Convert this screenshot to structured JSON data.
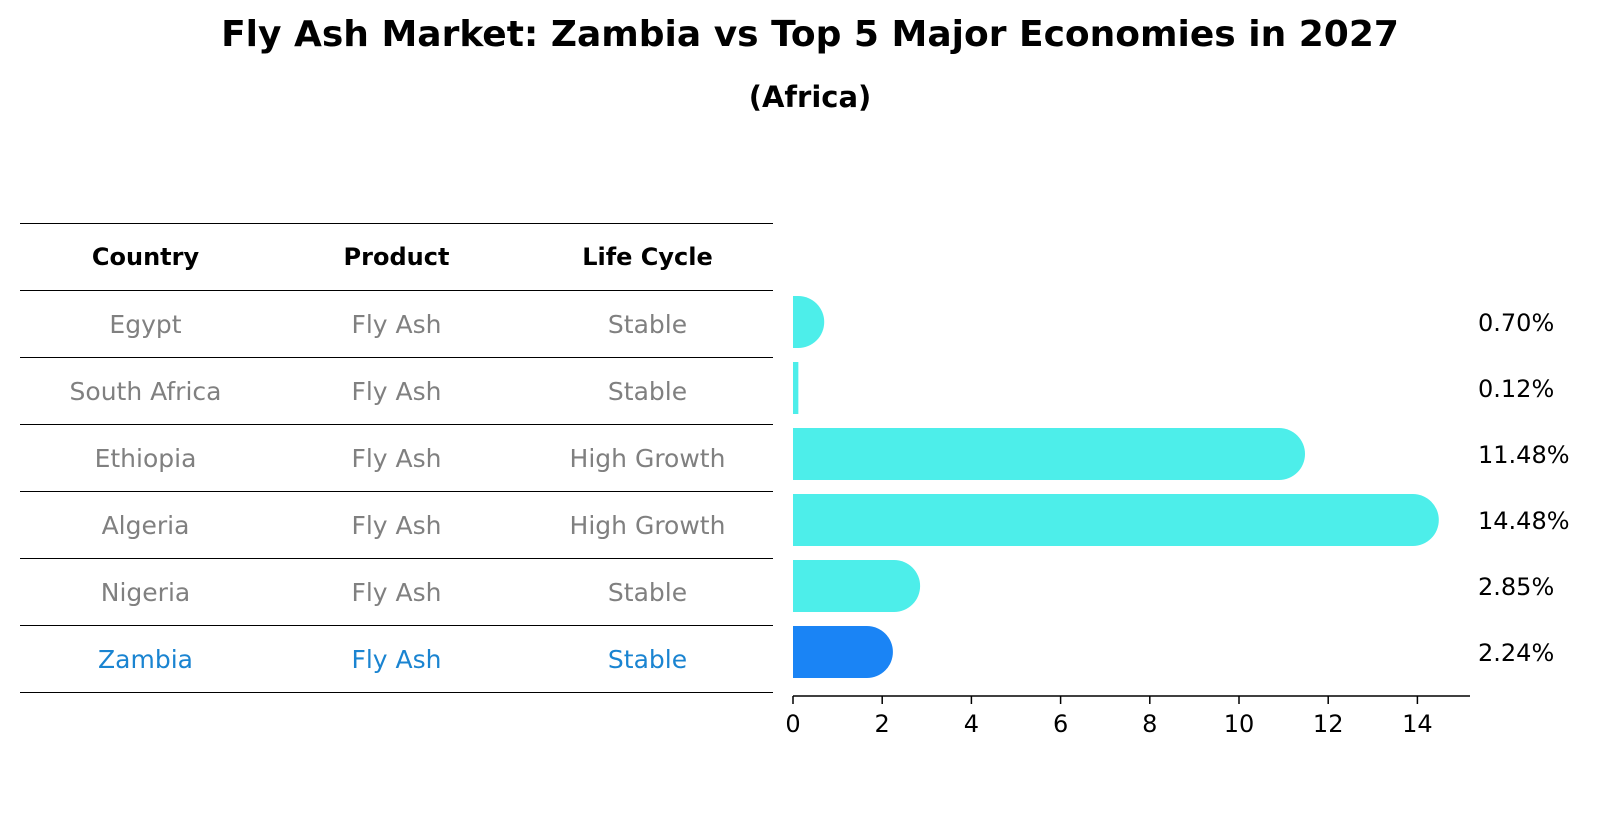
{
  "title": "Fly Ash Market: Zambia vs Top 5 Major Economies in 2027",
  "subtitle": "(Africa)",
  "table": {
    "headers": [
      "Country",
      "Product",
      "Life Cycle"
    ],
    "rows": [
      [
        "Egypt",
        "Fly Ash",
        "Stable"
      ],
      [
        "South Africa",
        "Fly Ash",
        "Stable"
      ],
      [
        "Ethiopia",
        "Fly Ash",
        "High Growth"
      ],
      [
        "Algeria",
        "Fly Ash",
        "High Growth"
      ],
      [
        "Nigeria",
        "Fly Ash",
        "Stable"
      ],
      [
        "Zambia",
        "Fly Ash",
        "Stable"
      ]
    ],
    "highlight_row": 5
  },
  "chart_data": {
    "type": "bar",
    "orientation": "horizontal",
    "categories": [
      "Egypt",
      "South Africa",
      "Ethiopia",
      "Algeria",
      "Nigeria",
      "Zambia"
    ],
    "values": [
      0.7,
      0.12,
      11.48,
      14.48,
      2.85,
      2.24
    ],
    "value_labels": [
      "0.70%",
      "0.12%",
      "11.48%",
      "14.48%",
      "2.85%",
      "2.24%"
    ],
    "xlim": [
      0,
      15.2
    ],
    "xticks": [
      0,
      2,
      4,
      6,
      8,
      10,
      12,
      14
    ],
    "grid": false,
    "colors": {
      "default": "#4deeea",
      "highlight": "#1a84f5"
    },
    "highlight_index": 5
  }
}
